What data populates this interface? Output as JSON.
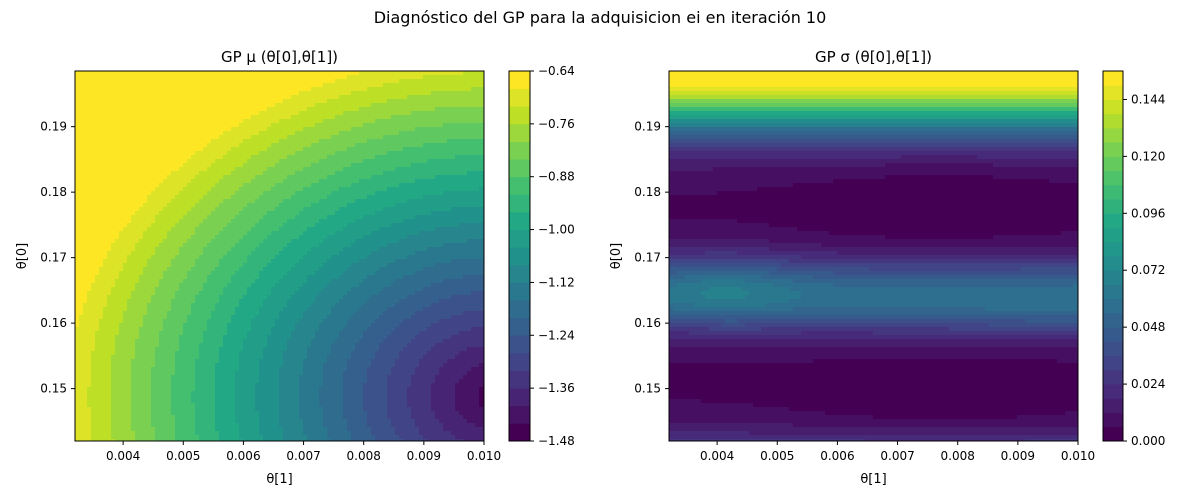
{
  "figure": {
    "suptitle": "Diagnóstico del GP para la adquisicion ei en iteración 10"
  },
  "colors": {
    "viridis": [
      "#440154",
      "#482475",
      "#414487",
      "#355f8d",
      "#2a788e",
      "#21918c",
      "#22a884",
      "#44bf70",
      "#7ad151",
      "#bddf26",
      "#fde725"
    ]
  },
  "chart_data": [
    {
      "type": "contour",
      "title": "GP μ (θ[0],θ[1])",
      "xlabel": "θ[1]",
      "ylabel": "θ[0]",
      "xlim": [
        0.0032,
        0.01
      ],
      "ylim": [
        0.142,
        0.1985
      ],
      "xticks": [
        "0.004",
        "0.005",
        "0.006",
        "0.007",
        "0.008",
        "0.009",
        "0.010"
      ],
      "yticks": [
        "0.15",
        "0.16",
        "0.17",
        "0.18",
        "0.19"
      ],
      "colorbar": {
        "min": -1.48,
        "max": -0.64,
        "levels": 21,
        "ticks": [
          "−1.48",
          "−1.36",
          "−1.24",
          "−1.12",
          "−1.00",
          "−0.88",
          "−0.76",
          "−0.64"
        ]
      },
      "field": {
        "kind": "mean",
        "minimum_at": [
          0.01,
          0.1488
        ],
        "maximum_at": [
          0.0032,
          0.1985
        ],
        "min_value": -1.47,
        "max_value": -0.66
      }
    },
    {
      "type": "contour",
      "title": "GP σ (θ[0],θ[1])",
      "xlabel": "θ[1]",
      "ylabel": "θ[0]",
      "xlim": [
        0.0032,
        0.01
      ],
      "ylim": [
        0.142,
        0.1985
      ],
      "xticks": [
        "0.004",
        "0.005",
        "0.006",
        "0.007",
        "0.008",
        "0.009",
        "0.010"
      ],
      "yticks": [
        "0.15",
        "0.16",
        "0.17",
        "0.18",
        "0.19"
      ],
      "colorbar": {
        "min": 0.0,
        "max": 0.156,
        "levels": 26,
        "ticks": [
          "0.000",
          "0.024",
          "0.048",
          "0.072",
          "0.096",
          "0.120",
          "0.144"
        ]
      },
      "field": {
        "kind": "std",
        "low_valleys": [
          [
            0.0077,
            0.1778
          ],
          [
            0.0078,
            0.149
          ]
        ],
        "max_value": 0.155
      }
    }
  ]
}
